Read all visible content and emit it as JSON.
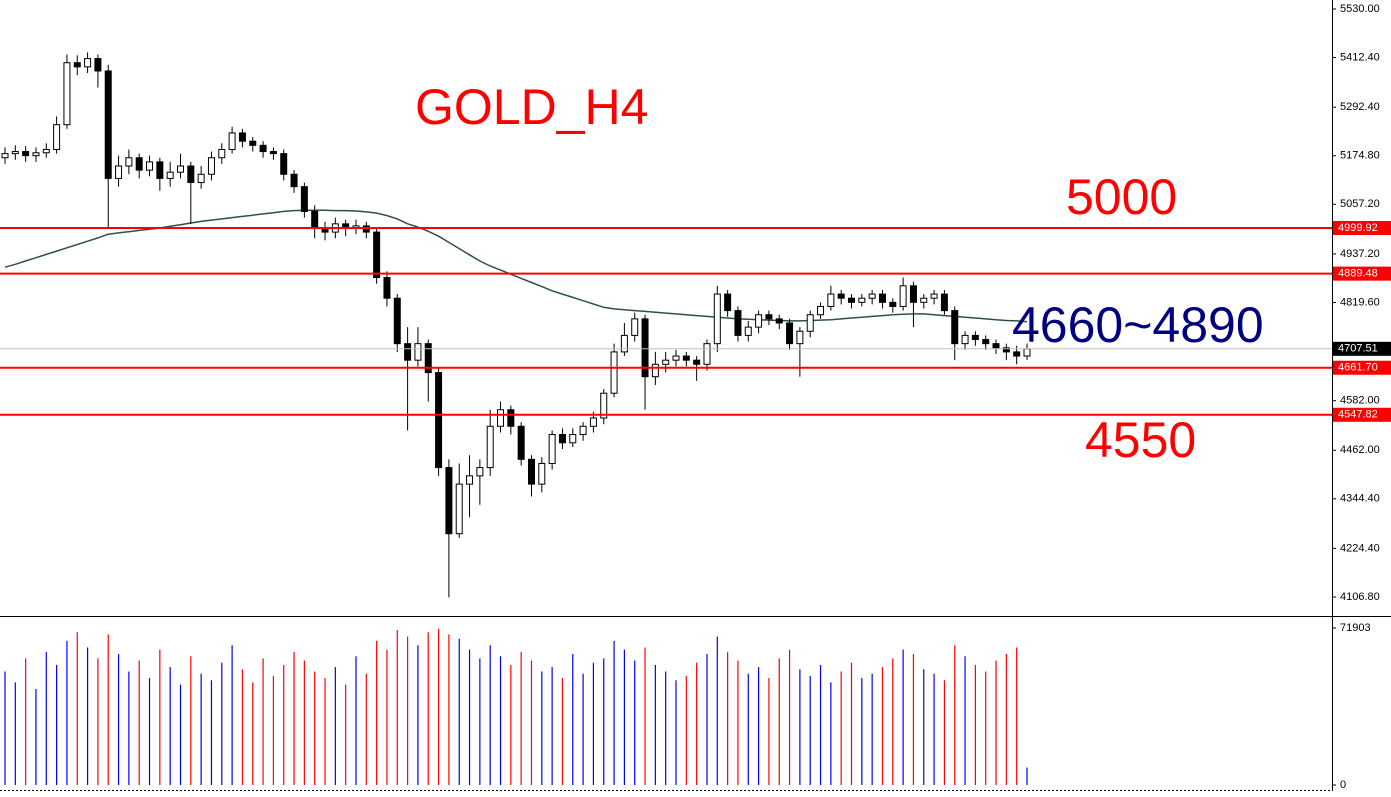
{
  "chart_data": {
    "type": "candlestick",
    "annotations": [
      "GOLD_H4",
      "5000",
      "4660~4890",
      "4550"
    ],
    "open": [
      5170,
      5180,
      5185,
      5175,
      5182,
      5190,
      5250,
      5400,
      5390,
      5410,
      5380,
      5120,
      5150,
      5170,
      5140,
      5160,
      5120,
      5135,
      5150,
      5110,
      5130,
      5170,
      5190,
      5230,
      5210,
      5200,
      5185,
      5180,
      5130,
      5100,
      5040,
      5000,
      4990,
      5010,
      5000,
      5005,
      4990,
      4880,
      4830,
      4720,
      4680,
      4720,
      4650,
      4420,
      4260,
      4380,
      4400,
      4420,
      4520,
      4560,
      4520,
      4440,
      4380,
      4430,
      4500,
      4480,
      4500,
      4520,
      4540,
      4600,
      4700,
      4740,
      4780,
      4640,
      4670,
      4680,
      4690,
      4680,
      4670,
      4720,
      4840,
      4800,
      4740,
      4760,
      4790,
      4780,
      4770,
      4720,
      4750,
      4790,
      4810,
      4840,
      4830,
      4820,
      4830,
      4840,
      4820,
      4810,
      4860,
      4820,
      4830,
      4840,
      4800,
      4720,
      4740,
      4730,
      4720,
      4710,
      4700,
      4690
    ],
    "high": [
      5195,
      5200,
      5198,
      5195,
      5205,
      5270,
      5420,
      5418,
      5425,
      5420,
      5395,
      5175,
      5190,
      5180,
      5175,
      5170,
      5160,
      5180,
      5160,
      5150,
      5185,
      5205,
      5245,
      5240,
      5220,
      5210,
      5195,
      5190,
      5140,
      5110,
      5055,
      5015,
      5025,
      5020,
      5020,
      5015,
      5000,
      4895,
      4840,
      4760,
      4760,
      4730,
      4660,
      4440,
      4430,
      4450,
      4440,
      4560,
      4580,
      4570,
      4530,
      4450,
      4445,
      4510,
      4515,
      4515,
      4530,
      4555,
      4610,
      4720,
      4770,
      4795,
      4790,
      4700,
      4700,
      4705,
      4700,
      4690,
      4730,
      4860,
      4850,
      4810,
      4775,
      4800,
      4800,
      4790,
      4780,
      4760,
      4800,
      4820,
      4860,
      4850,
      4840,
      4840,
      4850,
      4850,
      4830,
      4880,
      4870,
      4840,
      4850,
      4850,
      4810,
      4750,
      4750,
      4740,
      4730,
      4720,
      4715,
      4720
    ],
    "low": [
      5155,
      5165,
      5160,
      5160,
      5170,
      5180,
      5240,
      5370,
      5375,
      5340,
      5000,
      5100,
      5130,
      5120,
      5125,
      5090,
      5100,
      5120,
      5010,
      5095,
      5115,
      5155,
      5180,
      5195,
      5185,
      5170,
      5165,
      5115,
      5085,
      5025,
      4975,
      4970,
      4975,
      4980,
      4985,
      4975,
      4865,
      4810,
      4700,
      4510,
      4665,
      4580,
      4400,
      4106,
      4250,
      4300,
      4330,
      4400,
      4505,
      4500,
      4425,
      4350,
      4360,
      4415,
      4465,
      4470,
      4485,
      4505,
      4525,
      4590,
      4690,
      4725,
      4560,
      4620,
      4650,
      4665,
      4665,
      4630,
      4655,
      4700,
      4785,
      4725,
      4725,
      4745,
      4765,
      4755,
      4705,
      4640,
      4735,
      4780,
      4800,
      4815,
      4805,
      4810,
      4815,
      4805,
      4795,
      4800,
      4760,
      4805,
      4815,
      4790,
      4680,
      4705,
      4715,
      4705,
      4695,
      4680,
      4670,
      4680
    ],
    "close": [
      5180,
      5185,
      5175,
      5182,
      5190,
      5250,
      5400,
      5390,
      5410,
      5380,
      5120,
      5150,
      5170,
      5140,
      5160,
      5120,
      5135,
      5150,
      5110,
      5130,
      5170,
      5190,
      5230,
      5210,
      5200,
      5185,
      5180,
      5130,
      5100,
      5040,
      5000,
      4990,
      5010,
      5000,
      5005,
      4990,
      4880,
      4830,
      4720,
      4680,
      4720,
      4650,
      4420,
      4260,
      4380,
      4400,
      4420,
      4520,
      4560,
      4520,
      4440,
      4380,
      4430,
      4500,
      4480,
      4500,
      4520,
      4540,
      4600,
      4700,
      4740,
      4780,
      4640,
      4670,
      4680,
      4690,
      4680,
      4670,
      4720,
      4840,
      4800,
      4740,
      4760,
      4790,
      4780,
      4770,
      4720,
      4750,
      4790,
      4810,
      4840,
      4830,
      4820,
      4830,
      4840,
      4820,
      4810,
      4860,
      4820,
      4830,
      4840,
      4800,
      4720,
      4740,
      4730,
      4720,
      4710,
      4700,
      4690,
      4707.51
    ],
    "up_color": "#ffffff",
    "down_color": "#000000",
    "ma": {
      "color": "#2f4f4f",
      "values": [
        4905,
        4912,
        4920,
        4928,
        4936,
        4944,
        4952,
        4960,
        4968,
        4976,
        4985,
        4988,
        4991,
        4994,
        4997,
        5000,
        5004,
        5008,
        5012,
        5016,
        5019,
        5022,
        5025,
        5028,
        5031,
        5034,
        5037,
        5040,
        5042,
        5043,
        5043,
        5043,
        5042,
        5042,
        5041,
        5039,
        5036,
        5030,
        5022,
        5010,
        5002,
        4992,
        4980,
        4965,
        4950,
        4935,
        4920,
        4908,
        4898,
        4888,
        4878,
        4868,
        4858,
        4848,
        4840,
        4832,
        4824,
        4816,
        4808,
        4804,
        4802,
        4800,
        4798,
        4796,
        4794,
        4792,
        4790,
        4788,
        4786,
        4784,
        4782,
        4780,
        4779,
        4778,
        4777,
        4776,
        4775,
        4775,
        4776,
        4777,
        4778,
        4780,
        4782,
        4784,
        4786,
        4788,
        4790,
        4791,
        4792,
        4792,
        4790,
        4788,
        4786,
        4784,
        4782,
        4780,
        4778,
        4776,
        4775,
        4773
      ]
    },
    "ylim": [
      4063.2,
      5551.8
    ],
    "yticks": [
      {
        "value": 5530,
        "label": "5530.00"
      },
      {
        "value": 5412.4,
        "label": "5412.40"
      },
      {
        "value": 5292.4,
        "label": "5292.40"
      },
      {
        "value": 5174.8,
        "label": "5174.80"
      },
      {
        "value": 5057.2,
        "label": "5057.20"
      },
      {
        "value": 4937.2,
        "label": "4937.20"
      },
      {
        "value": 4819.6,
        "label": "4819.60"
      },
      {
        "value": 4582,
        "label": "4582.00"
      },
      {
        "value": 4462,
        "label": "4462.00"
      },
      {
        "value": 4344.4,
        "label": "4344.40"
      },
      {
        "value": 4224.4,
        "label": "4224.40"
      },
      {
        "value": 4106.8,
        "label": "4106.80"
      }
    ],
    "levels": [
      4999.92,
      4889.48,
      {
        "value": 4661.7,
        "label": "4661.70"
      },
      4547.82
    ],
    "level_color": "#ff0000",
    "last_price": 4707.51,
    "volume": {
      "values": [
        52000,
        47000,
        58000,
        44000,
        61000,
        55000,
        66000,
        70000,
        63000,
        58000,
        69000,
        60000,
        52000,
        57000,
        49000,
        62000,
        54000,
        46000,
        59000,
        51000,
        48000,
        56000,
        64000,
        53000,
        47000,
        58000,
        50000,
        55000,
        61000,
        57000,
        52000,
        49000,
        54000,
        46000,
        59000,
        51000,
        66000,
        62000,
        71000,
        68000,
        64000,
        70000,
        71500,
        69000,
        67000,
        62000,
        58000,
        64000,
        59000,
        55000,
        61000,
        57000,
        52000,
        54000,
        49000,
        60000,
        51000,
        56000,
        58000,
        66000,
        62000,
        57000,
        63000,
        55000,
        52000,
        48000,
        50000,
        56000,
        60000,
        68000,
        61000,
        57000,
        51000,
        54000,
        49000,
        58000,
        62000,
        53000,
        50000,
        55000,
        47000,
        52000,
        56000,
        49000,
        51000,
        54000,
        58000,
        62000,
        60000,
        53000,
        51000,
        48000,
        64000,
        59000,
        55000,
        52000,
        57000,
        60000,
        63000,
        8000
      ],
      "up_color": "#0000ff",
      "down_color": "#ff0000",
      "ylim": [
        0,
        76500
      ],
      "yticks": [
        71903,
        0
      ]
    }
  }
}
